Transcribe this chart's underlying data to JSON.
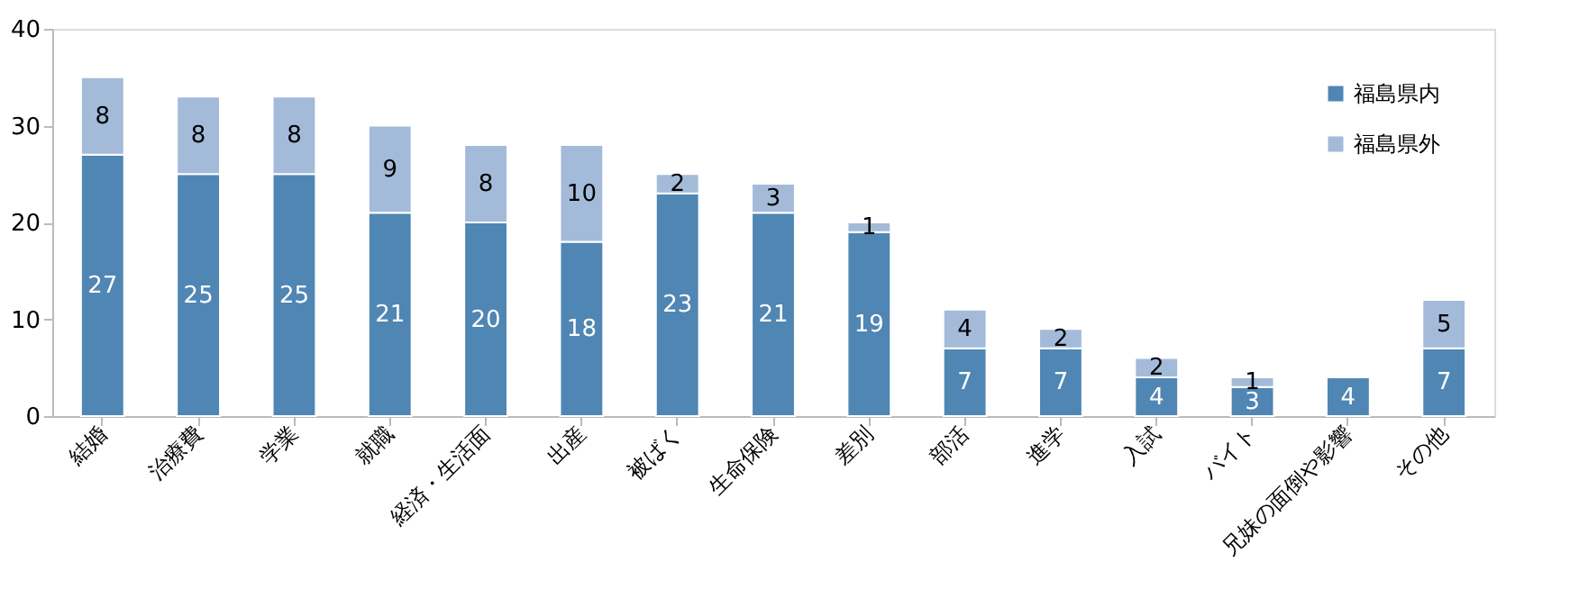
{
  "chart_data": {
    "type": "bar",
    "stacked": true,
    "categories": [
      "結婚",
      "治療費",
      "学業",
      "就職",
      "経済・生活面",
      "出産",
      "被ばく",
      "生命保険",
      "差別",
      "部活",
      "進学",
      "入試",
      "バイト",
      "兄妹の面倒や影響",
      "その他"
    ],
    "series": [
      {
        "name": "福島県内",
        "color": "#4f86b3",
        "values": [
          27,
          25,
          25,
          21,
          20,
          18,
          23,
          21,
          19,
          7,
          7,
          4,
          3,
          4,
          7
        ]
      },
      {
        "name": "福島県外",
        "color": "#a3bbd9",
        "values": [
          8,
          8,
          8,
          9,
          8,
          10,
          2,
          3,
          1,
          4,
          2,
          2,
          1,
          null,
          5
        ]
      }
    ],
    "ylim": [
      0,
      40
    ],
    "yticks": [
      0,
      10,
      20,
      30,
      40
    ],
    "grid": false,
    "legend": "top right",
    "data_labels": true
  }
}
